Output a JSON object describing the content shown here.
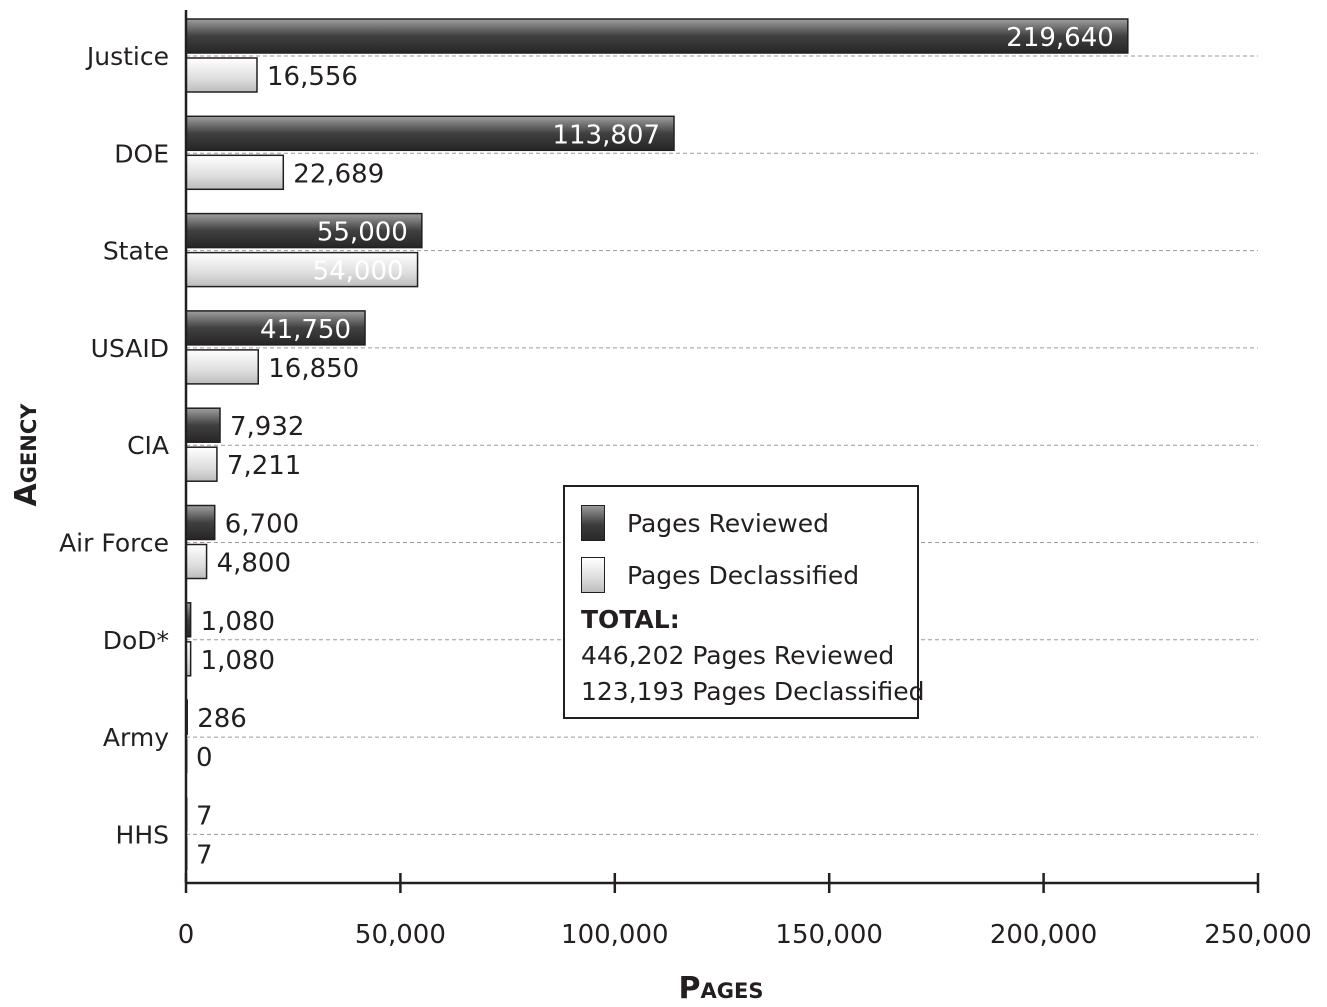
{
  "chart_data": {
    "type": "bar",
    "orientation": "horizontal",
    "categories": [
      "Justice",
      "DOE",
      "State",
      "USAID",
      "CIA",
      "Air Force",
      "DoD*",
      "Army",
      "HHS"
    ],
    "series": [
      {
        "name": "Pages Reviewed",
        "values": [
          219640,
          113807,
          55000,
          41750,
          7932,
          6700,
          1080,
          286,
          7
        ],
        "labels": [
          "219,640",
          "113,807",
          "55,000",
          "41,750",
          "7,932",
          "6,700",
          "1,080",
          "286",
          "7"
        ]
      },
      {
        "name": "Pages Declassified",
        "values": [
          16556,
          22689,
          54000,
          16850,
          7211,
          4800,
          1080,
          0,
          7
        ],
        "labels": [
          "16,556",
          "22,689",
          "54,000",
          "16,850",
          "7,211",
          "4,800",
          "1,080",
          "0",
          "7"
        ]
      }
    ],
    "xlabel": "Pages",
    "ylabel": "Agency",
    "xlim": [
      0,
      250000
    ],
    "xticks": [
      0,
      50000,
      100000,
      150000,
      200000,
      250000
    ],
    "xtick_labels": [
      "0",
      "50,000",
      "100,000",
      "150,000",
      "200,000",
      "250,000"
    ],
    "grid": "horizontal dashed",
    "legend": "center-right",
    "colors": {
      "reviewed": "#3c3c3c",
      "declassified": "#e6e6e6"
    }
  },
  "legend": {
    "reviewed_label": "Pages Reviewed",
    "declassified_label": "Pages Declassified",
    "total_label": "TOTAL:",
    "total_reviewed": "446,202 Pages Reviewed",
    "total_declassified": "123,193 Pages Declassified"
  }
}
